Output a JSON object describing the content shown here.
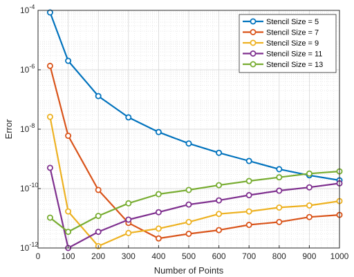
{
  "chart_data": {
    "type": "line",
    "xlabel": "Number of Points",
    "ylabel": "Error",
    "xlim": [
      0,
      1000
    ],
    "ylim": [
      1e-12,
      0.0001
    ],
    "yscale": "log",
    "grid": true,
    "minor_grid": true,
    "legend_position": "top-right",
    "x_ticks": [
      0,
      100,
      200,
      300,
      400,
      500,
      600,
      700,
      800,
      900,
      1000
    ],
    "y_ticks": [
      {
        "value": 1e-12,
        "mantissa": "10",
        "exponent": "-12"
      },
      {
        "value": 1e-10,
        "mantissa": "10",
        "exponent": "-10"
      },
      {
        "value": 1e-08,
        "mantissa": "10",
        "exponent": "-8"
      },
      {
        "value": 1e-06,
        "mantissa": "10",
        "exponent": "-6"
      },
      {
        "value": 0.0001,
        "mantissa": "10",
        "exponent": "-4"
      }
    ],
    "x": [
      40,
      100,
      200,
      300,
      400,
      500,
      600,
      700,
      800,
      900,
      1000
    ],
    "series": [
      {
        "name": "Stencil Size = 5",
        "color": "#0072BD",
        "values": [
          8.5e-05,
          2e-06,
          1.3e-07,
          2.5e-08,
          8e-09,
          3.3e-09,
          1.6e-09,
          8.5e-10,
          4.5e-10,
          2.8e-10,
          1.9e-10
        ]
      },
      {
        "name": "Stencil Size = 7",
        "color": "#D95319",
        "values": [
          1.35e-06,
          6e-09,
          9e-11,
          7e-12,
          2.1e-12,
          3e-12,
          4e-12,
          6e-12,
          7.5e-12,
          1.1e-11,
          1.3e-11
        ]
      },
      {
        "name": "Stencil Size = 9",
        "color": "#EDB120",
        "values": [
          2.6e-08,
          1.7e-11,
          1.15e-12,
          3.2e-12,
          4.5e-12,
          7.5e-12,
          1.4e-11,
          1.7e-11,
          2.3e-11,
          2.7e-11,
          3.8e-11
        ]
      },
      {
        "name": "Stencil Size = 11",
        "color": "#7E2F8E",
        "values": [
          5e-10,
          1e-12,
          3.5e-12,
          9e-12,
          1.6e-11,
          2.9e-11,
          4e-11,
          6e-11,
          8.5e-11,
          1.1e-10,
          1.5e-10
        ]
      },
      {
        "name": "Stencil Size = 13",
        "color": "#77AC30",
        "values": [
          1.05e-11,
          3.5e-12,
          1.2e-11,
          3.2e-11,
          6.5e-11,
          9e-11,
          1.3e-10,
          1.8e-10,
          2.4e-10,
          3.2e-10,
          3.8e-10
        ]
      }
    ]
  }
}
